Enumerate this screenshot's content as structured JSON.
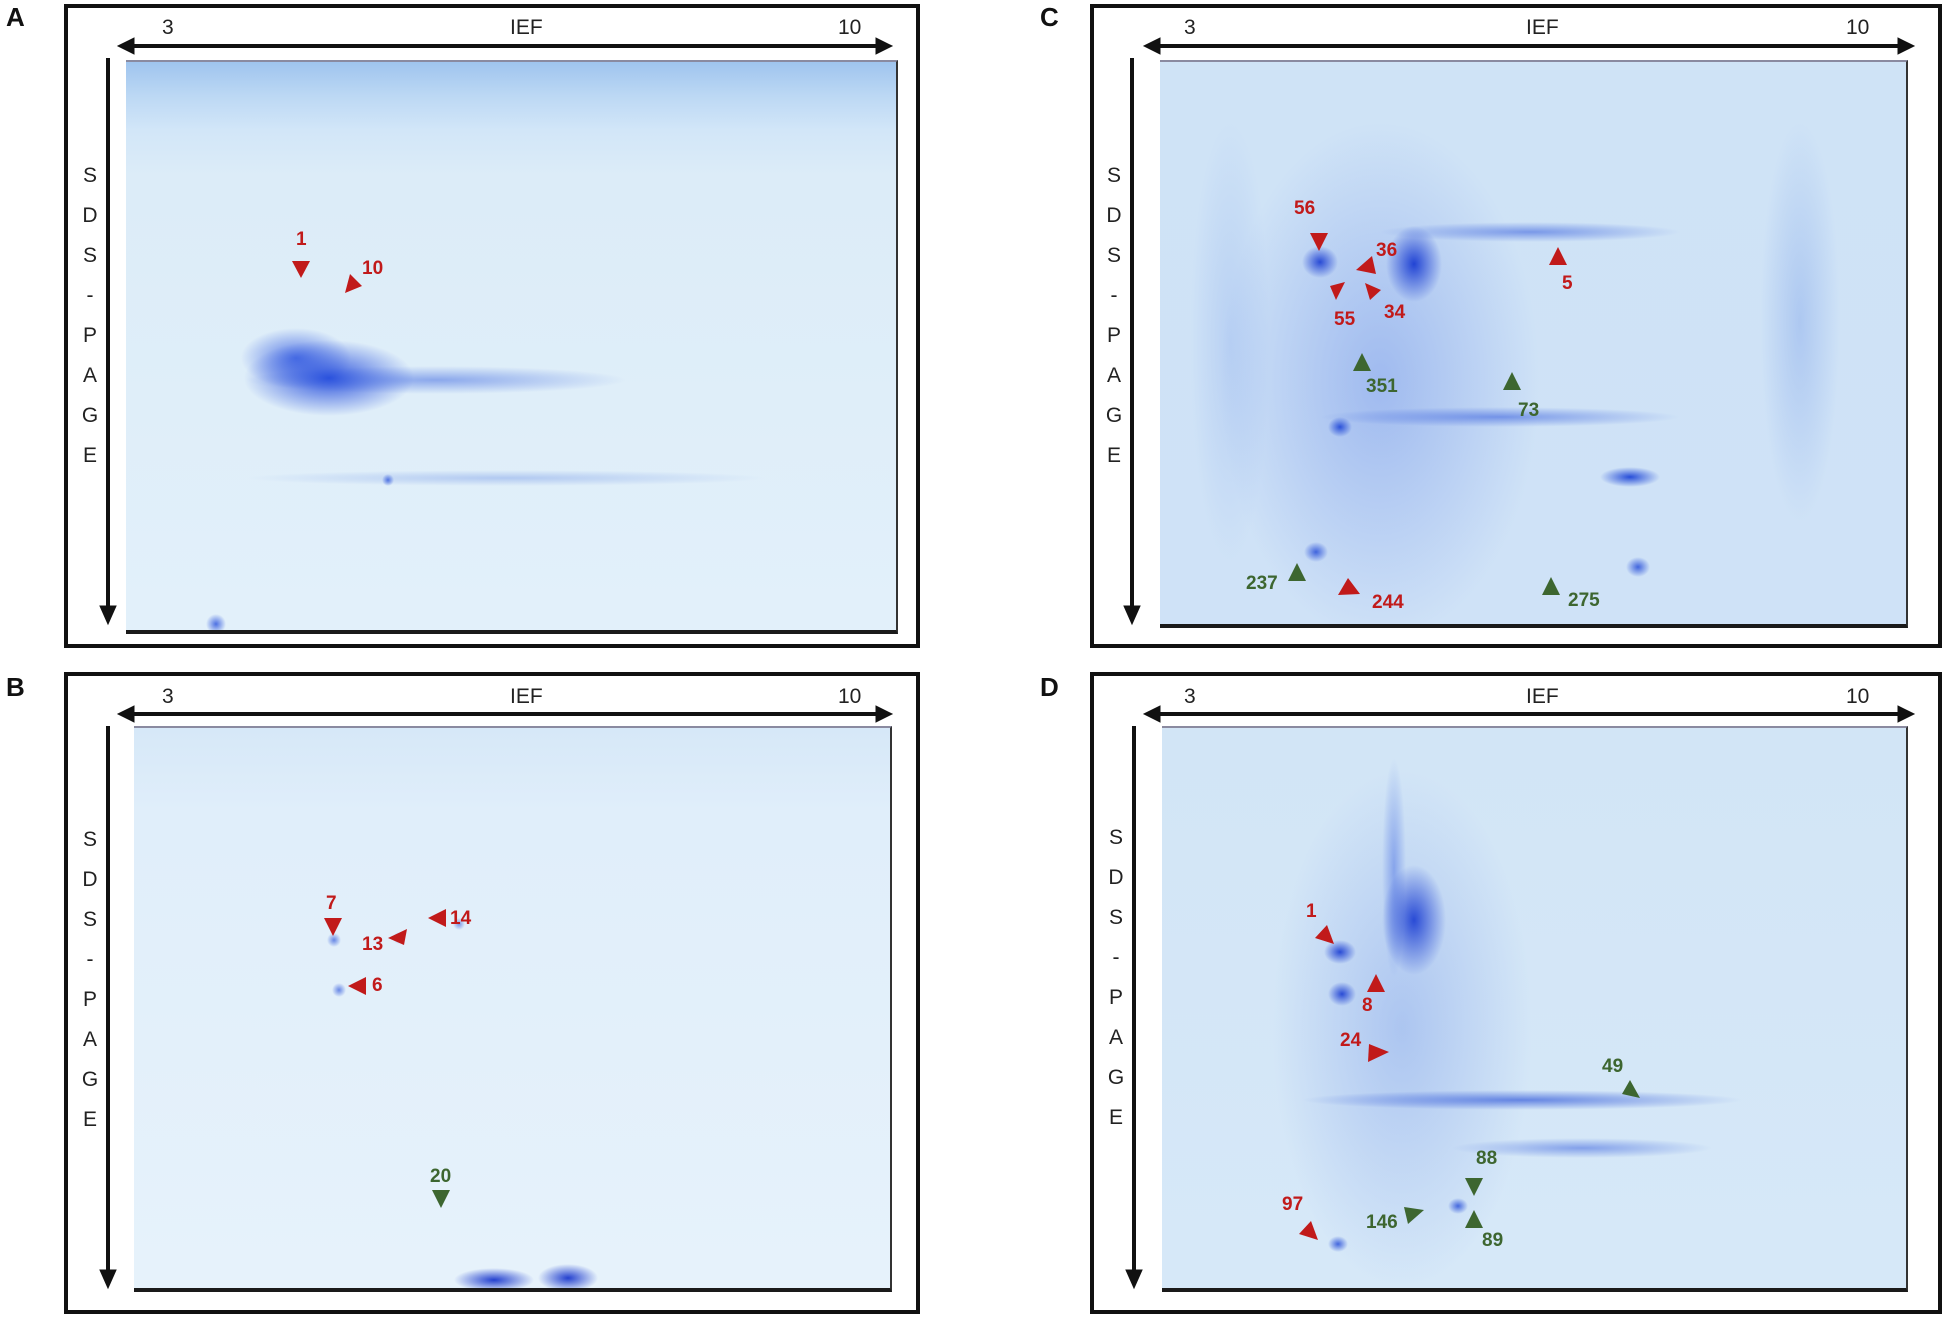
{
  "panels": {
    "a": {
      "letter": "A",
      "axis_start": "3",
      "axis_title": "IEF",
      "axis_end": "10",
      "vertical_axis": [
        "S",
        "D",
        "S",
        "-",
        "P",
        "A",
        "G",
        "E"
      ],
      "spot_labels": [
        "1",
        "10"
      ]
    },
    "b": {
      "letter": "B",
      "axis_start": "3",
      "axis_title": "IEF",
      "axis_end": "10",
      "vertical_axis": [
        "S",
        "D",
        "S",
        "-",
        "P",
        "A",
        "G",
        "E"
      ],
      "spot_labels": [
        "7",
        "13",
        "14",
        "6",
        "20"
      ]
    },
    "c": {
      "letter": "C",
      "axis_start": "3",
      "axis_title": "IEF",
      "axis_end": "10",
      "vertical_axis": [
        "S",
        "D",
        "S",
        "-",
        "P",
        "A",
        "G",
        "E"
      ],
      "spot_labels": [
        "56",
        "36",
        "5",
        "55",
        "34",
        "351",
        "73",
        "237",
        "244",
        "275"
      ]
    },
    "d": {
      "letter": "D",
      "axis_start": "3",
      "axis_title": "IEF",
      "axis_end": "10",
      "vertical_axis": [
        "S",
        "D",
        "S",
        "-",
        "P",
        "A",
        "G",
        "E"
      ],
      "spot_labels": [
        "1",
        "8",
        "24",
        "49",
        "88",
        "97",
        "146",
        "89"
      ]
    }
  },
  "colors": {
    "upregulated_arrow": "#c11a1a",
    "downregulated_arrow": "#3d6630",
    "gel_background": "#dcecf8",
    "protein_spot": "#2f57d8"
  }
}
